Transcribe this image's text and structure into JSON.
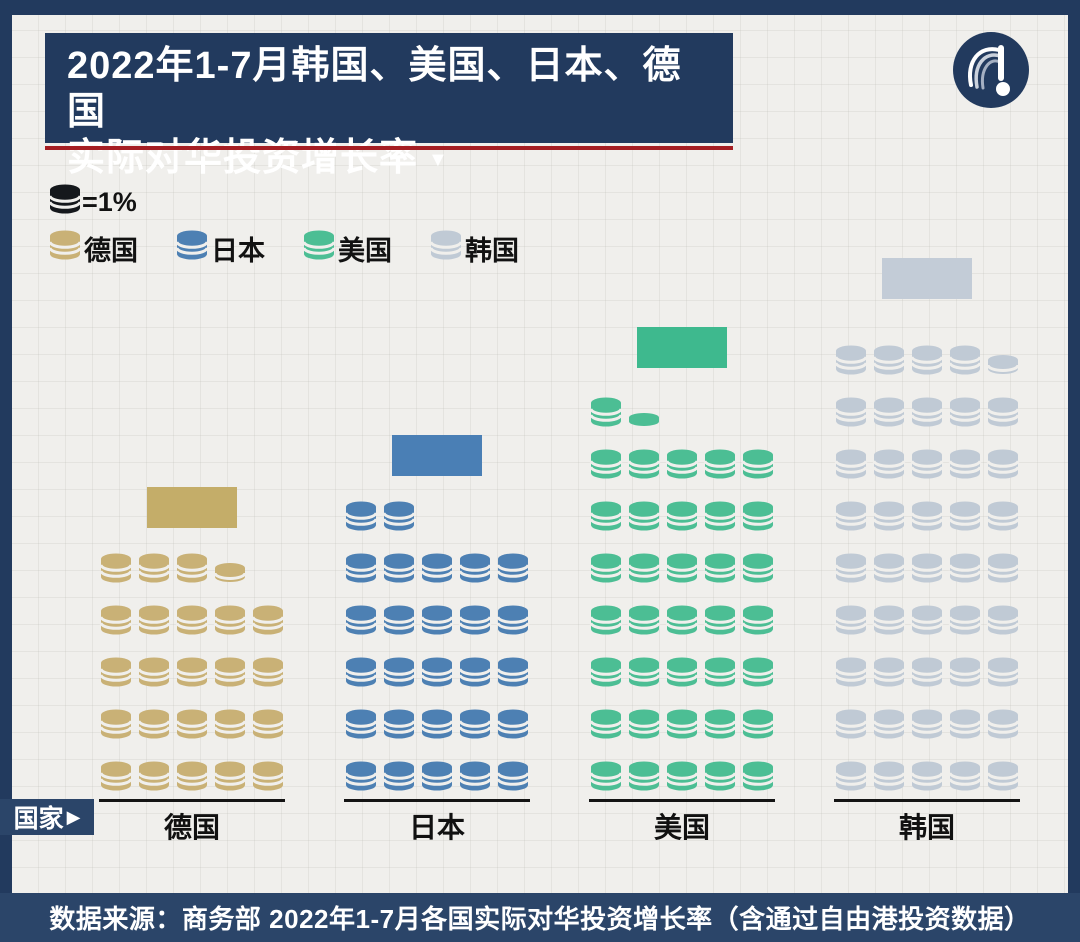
{
  "header": {
    "title_line1": "2022年1-7月韩国、美国、日本、德国",
    "title_line2": "实际对华投资增长率",
    "title_arrow": "▼"
  },
  "legend": {
    "unit_label": "=1%",
    "unit_coin_color": "#15181c",
    "items": [
      {
        "label": "德国",
        "color": "#c9b176"
      },
      {
        "label": "日本",
        "color": "#4d80b3"
      },
      {
        "label": "美国",
        "color": "#4cbe94"
      },
      {
        "label": "韩国",
        "color": "#c0cad5"
      }
    ]
  },
  "chart_data": {
    "type": "pictogram-bar",
    "title": "2022年1-7月韩国、美国、日本、德国实际对华投资增长率",
    "unit_per_icon": "1%",
    "categories": [
      "德国",
      "日本",
      "美国",
      "韩国"
    ],
    "values": [
      23.5,
      26.9,
      36.3,
      44.5
    ],
    "value_labels": [
      "23.5",
      "26.9",
      "36.3",
      "44.5"
    ],
    "colors": [
      "#c9b176",
      "#4d80b3",
      "#4cbe94",
      "#c0cad5"
    ],
    "badge_colors": [
      "#c4ad69",
      "#4a7fb5",
      "#3eb98e",
      "#c3ccd7"
    ],
    "icons_per_row": 5,
    "x_axis_label": "国家",
    "legend_position": "top-left"
  },
  "axis": {
    "label": "国家",
    "arrow": "▶"
  },
  "footer": {
    "source": "数据来源：商务部 2022年1-7月各国实际对华投资增长率（含通过自由港投资数据）"
  },
  "colors": {
    "frame_navy": "#223a5e",
    "bar_navy": "#2b4569",
    "underline_red": "#a51e23",
    "background": "#f0efec"
  }
}
